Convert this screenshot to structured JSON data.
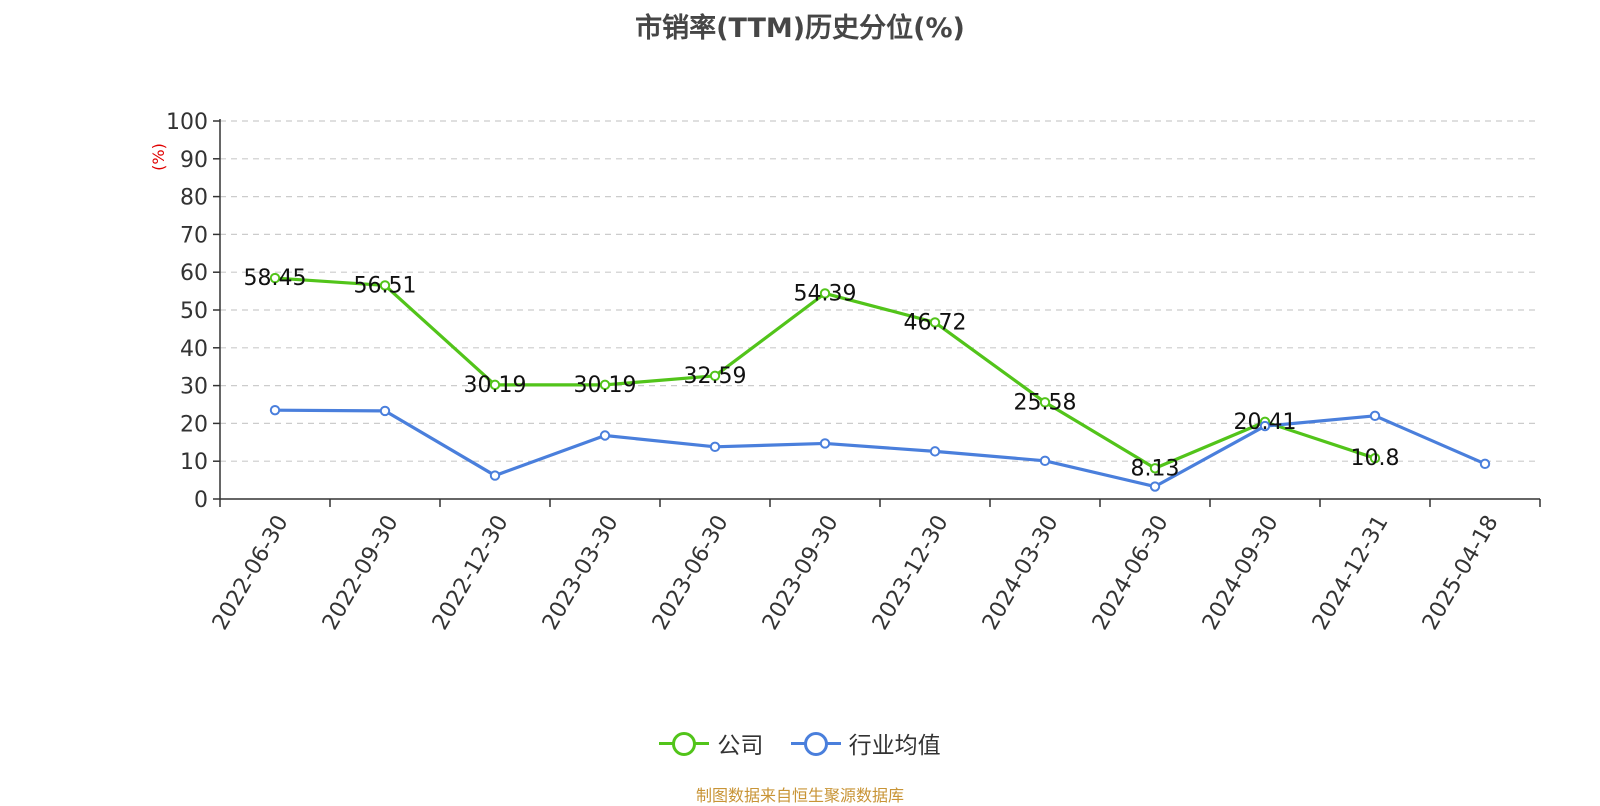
{
  "title": "市销率(TTM)历史分位(%)",
  "source": "制图数据来自恒生聚源数据库",
  "chart_data": {
    "type": "line",
    "title": "市销率(TTM)历史分位(%)",
    "ylabel": "(%)",
    "xlabel": "",
    "ylim": [
      0,
      100
    ],
    "yticks": [
      0,
      10,
      20,
      30,
      40,
      50,
      60,
      70,
      80,
      90,
      100
    ],
    "grid": true,
    "legend_position": "bottom",
    "categories": [
      "2022-06-30",
      "2022-09-30",
      "2022-12-30",
      "2023-03-30",
      "2023-06-30",
      "2023-09-30",
      "2023-12-30",
      "2024-03-30",
      "2024-06-30",
      "2024-09-30",
      "2024-12-31",
      "2025-04-18"
    ],
    "series": [
      {
        "name": "公司",
        "color": "#52c41a",
        "values": [
          58.45,
          56.51,
          30.19,
          30.19,
          32.59,
          54.39,
          46.72,
          25.58,
          8.13,
          20.41,
          10.8,
          null
        ],
        "labels": [
          "58.45",
          "56.51",
          "30.19",
          "30.19",
          "32.59",
          "54.39",
          "46.72",
          "25.58",
          "8.13",
          "20.41",
          "10.8",
          null
        ]
      },
      {
        "name": "行业均值",
        "color": "#4a7fdc",
        "values": [
          23.5,
          23.3,
          6.2,
          16.8,
          13.8,
          14.7,
          12.6,
          10.1,
          3.3,
          19.3,
          22.0,
          9.3
        ]
      }
    ]
  }
}
